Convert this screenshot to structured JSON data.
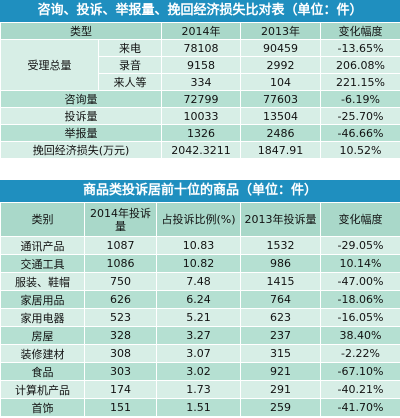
{
  "table1": {
    "title": "咨询、投诉、举报量、挽回经济损失比对表（单位：件）",
    "headers": [
      "类型",
      "2014年",
      "2013年",
      "变化幅度"
    ],
    "group_label": "受理总量",
    "sub_rows": [
      {
        "label": "来电",
        "y2014": "78108",
        "y2013": "90459",
        "change": "-13.65%"
      },
      {
        "label": "录音",
        "y2014": "9158",
        "y2013": "2992",
        "change": "206.08%"
      },
      {
        "label": "来人等",
        "y2014": "334",
        "y2013": "104",
        "change": "221.15%"
      }
    ],
    "rows": [
      {
        "label": "咨询量",
        "y2014": "72799",
        "y2013": "77603",
        "change": "-6.19%"
      },
      {
        "label": "投诉量",
        "y2014": "10033",
        "y2013": "13504",
        "change": "-25.70%"
      },
      {
        "label": "举报量",
        "y2014": "1326",
        "y2013": "2486",
        "change": "-46.66%"
      },
      {
        "label": "挽回经济损失(万元)",
        "y2014": "2042.3211",
        "y2013": "1847.91",
        "change": "10.52%"
      }
    ]
  },
  "table2": {
    "title": "商品类投诉居前十位的商品（单位：件）",
    "headers": {
      "category": "类别",
      "y2014": "2014年投诉量",
      "ratio": "占投诉比例(%)",
      "y2013": "2013年投诉量",
      "change": "变化幅度"
    },
    "rows": [
      {
        "label": "通讯产品",
        "y2014": "1087",
        "ratio": "10.83",
        "y2013": "1532",
        "change": "-29.05%"
      },
      {
        "label": "交通工具",
        "y2014": "1086",
        "ratio": "10.82",
        "y2013": "986",
        "change": "10.14%"
      },
      {
        "label": "服装、鞋帽",
        "y2014": "750",
        "ratio": "7.48",
        "y2013": "1415",
        "change": "-47.00%"
      },
      {
        "label": "家居用品",
        "y2014": "626",
        "ratio": "6.24",
        "y2013": "764",
        "change": "-18.06%"
      },
      {
        "label": "家用电器",
        "y2014": "523",
        "ratio": "5.21",
        "y2013": "623",
        "change": "-16.05%"
      },
      {
        "label": "房屋",
        "y2014": "328",
        "ratio": "3.27",
        "y2013": "237",
        "change": "38.40%"
      },
      {
        "label": "装修建材",
        "y2014": "308",
        "ratio": "3.07",
        "y2013": "315",
        "change": "-2.22%"
      },
      {
        "label": "食品",
        "y2014": "303",
        "ratio": "3.02",
        "y2013": "921",
        "change": "-67.10%"
      },
      {
        "label": "计算机产品",
        "y2014": "174",
        "ratio": "1.73",
        "y2013": "291",
        "change": "-40.21%"
      },
      {
        "label": "首饰",
        "y2014": "151",
        "ratio": "1.51",
        "y2013": "259",
        "change": "-41.70%"
      }
    ]
  }
}
